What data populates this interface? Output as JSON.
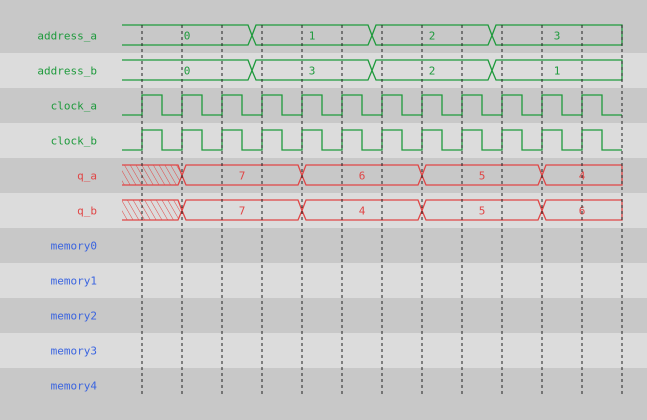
{
  "colors": {
    "row_dark": "#c8c8c8",
    "row_light": "#dcdcdc",
    "logic_signal": "#1e9a3c",
    "output_signal": "#e04646",
    "memory_label": "#3a64e0",
    "grid_line": "#222222"
  },
  "time": {
    "start": -0.5,
    "end": 12,
    "grid": [
      0,
      1,
      2,
      3,
      4,
      5,
      6,
      7,
      8,
      9,
      10,
      11,
      12
    ]
  },
  "signals": [
    {
      "name": "address_a",
      "kind": "bus",
      "color": "logic",
      "segments": [
        {
          "from": -0.5,
          "to": 2.75,
          "value": "0"
        },
        {
          "from": 2.75,
          "to": 5.75,
          "value": "1"
        },
        {
          "from": 5.75,
          "to": 8.75,
          "value": "2"
        },
        {
          "from": 8.75,
          "to": 12,
          "value": "3"
        }
      ]
    },
    {
      "name": "address_b",
      "kind": "bus",
      "color": "logic",
      "segments": [
        {
          "from": -0.5,
          "to": 2.75,
          "value": "0"
        },
        {
          "from": 2.75,
          "to": 5.75,
          "value": "3"
        },
        {
          "from": 5.75,
          "to": 8.75,
          "value": "2"
        },
        {
          "from": 8.75,
          "to": 12,
          "value": "1"
        }
      ]
    },
    {
      "name": "clock_a",
      "kind": "clock",
      "color": "logic",
      "high_fraction": 0.5
    },
    {
      "name": "clock_b",
      "kind": "clock",
      "color": "logic",
      "high_fraction": 0.5
    },
    {
      "name": "q_a",
      "kind": "bus",
      "color": "output",
      "segments": [
        {
          "from": -0.5,
          "to": 1,
          "value": null
        },
        {
          "from": 1,
          "to": 4,
          "value": "7"
        },
        {
          "from": 4,
          "to": 7,
          "value": "6"
        },
        {
          "from": 7,
          "to": 10,
          "value": "5"
        },
        {
          "from": 10,
          "to": 12,
          "value": "4"
        }
      ]
    },
    {
      "name": "q_b",
      "kind": "bus",
      "color": "output",
      "segments": [
        {
          "from": -0.5,
          "to": 1,
          "value": null
        },
        {
          "from": 1,
          "to": 4,
          "value": "7"
        },
        {
          "from": 4,
          "to": 7,
          "value": "4"
        },
        {
          "from": 7,
          "to": 10,
          "value": "5"
        },
        {
          "from": 10,
          "to": 12,
          "value": "6"
        }
      ]
    },
    {
      "name": "memory0",
      "kind": "empty",
      "color": "memory"
    },
    {
      "name": "memory1",
      "kind": "empty",
      "color": "memory"
    },
    {
      "name": "memory2",
      "kind": "empty",
      "color": "memory"
    },
    {
      "name": "memory3",
      "kind": "empty",
      "color": "memory"
    },
    {
      "name": "memory4",
      "kind": "empty",
      "color": "memory"
    }
  ]
}
